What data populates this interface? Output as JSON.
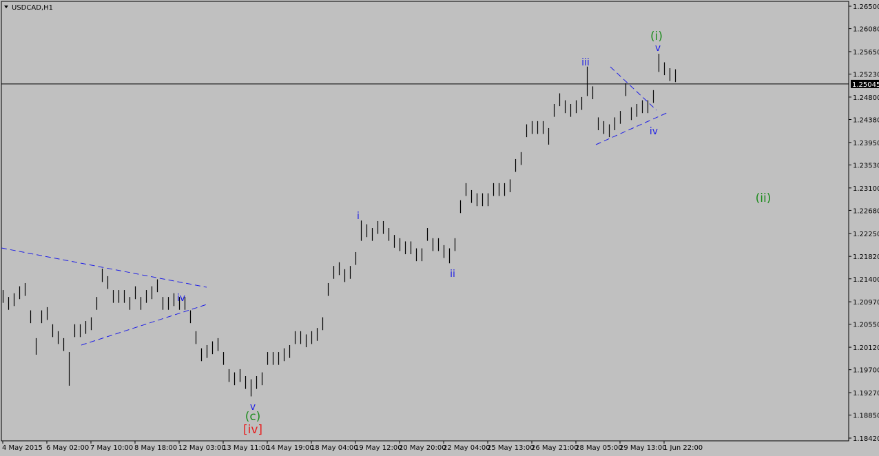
{
  "chart_data": {
    "type": "hlbar",
    "title": "USDCAD,H1",
    "color": "#000000",
    "background": "#c0c0c0",
    "xlim": [
      -0.25,
      153.5
    ],
    "xticks": [
      {
        "value": 0,
        "label": "4 May 2015"
      },
      {
        "value": 8,
        "label": "6 May 02:00"
      },
      {
        "value": 16,
        "label": "7 May 10:00"
      },
      {
        "value": 24,
        "label": "8 May 18:00"
      },
      {
        "value": 32,
        "label": "12 May 03:00"
      },
      {
        "value": 40,
        "label": "13 May 11:00"
      },
      {
        "value": 48,
        "label": "14 May 19:00"
      },
      {
        "value": 56,
        "label": "18 May 04:00"
      },
      {
        "value": 64,
        "label": "19 May 12:00"
      },
      {
        "value": 72,
        "label": "20 May 20:00"
      },
      {
        "value": 80,
        "label": "22 May 04:00"
      },
      {
        "value": 88,
        "label": "25 May 13:00"
      },
      {
        "value": 96,
        "label": "26 May 21:00"
      },
      {
        "value": 104,
        "label": "28 May 05:00"
      },
      {
        "value": 112,
        "label": "29 May 13:00"
      },
      {
        "value": 120,
        "label": "1 Jun 22:00"
      }
    ],
    "ylim": [
      1.1842,
      1.265
    ],
    "yticks": [
      {
        "value": 1.265,
        "label": "1.26500"
      },
      {
        "value": 1.2608,
        "label": "1.26080"
      },
      {
        "value": 1.2565,
        "label": "1.25650"
      },
      {
        "value": 1.2523,
        "label": "1.25230"
      },
      {
        "value": 1.248,
        "label": "1.24800"
      },
      {
        "value": 1.2438,
        "label": "1.24380"
      },
      {
        "value": 1.2395,
        "label": "1.23950"
      },
      {
        "value": 1.2353,
        "label": "1.23530"
      },
      {
        "value": 1.231,
        "label": "1.23100"
      },
      {
        "value": 1.2268,
        "label": "1.22680"
      },
      {
        "value": 1.2225,
        "label": "1.22250"
      },
      {
        "value": 1.2182,
        "label": "1.21820"
      },
      {
        "value": 1.214,
        "label": "1.21400"
      },
      {
        "value": 1.2097,
        "label": "1.20970"
      },
      {
        "value": 1.2055,
        "label": "1.20550"
      },
      {
        "value": 1.2012,
        "label": "1.20120"
      },
      {
        "value": 1.197,
        "label": "1.19700"
      },
      {
        "value": 1.1927,
        "label": "1.19270"
      },
      {
        "value": 1.1885,
        "label": "1.18850"
      },
      {
        "value": 1.1842,
        "label": "1.18420"
      }
    ],
    "last_price": {
      "value": 1.25045,
      "label": "1.25045"
    },
    "high": [
      1.2119,
      1.2106,
      1.2113,
      1.2126,
      1.2132,
      1.2081,
      1.2029,
      1.2081,
      1.2087,
      1.2055,
      1.2042,
      1.2029,
      1.2003,
      1.2055,
      1.2055,
      1.2061,
      1.2068,
      1.2106,
      1.2159,
      1.2145,
      1.2119,
      1.2119,
      1.2119,
      1.2106,
      1.2126,
      1.2106,
      1.2119,
      1.2126,
      1.2139,
      1.2106,
      1.2106,
      1.2113,
      1.2106,
      1.2106,
      1.2081,
      1.2042,
      1.201,
      1.2016,
      1.2023,
      1.2029,
      1.2003,
      1.1971,
      1.1965,
      1.1971,
      1.1958,
      1.1952,
      1.1958,
      1.1965,
      1.2003,
      1.2003,
      1.2003,
      1.201,
      1.2016,
      1.2042,
      1.2042,
      1.2036,
      1.2042,
      1.2048,
      1.2068,
      1.2132,
      1.2164,
      1.2171,
      1.2158,
      1.2164,
      1.219,
      1.2249,
      1.2242,
      1.2235,
      1.2248,
      1.2248,
      1.2235,
      1.2222,
      1.2216,
      1.221,
      1.221,
      1.2197,
      1.2197,
      1.2235,
      1.2216,
      1.2216,
      1.2203,
      1.2197,
      1.2216,
      1.2287,
      1.2319,
      1.2306,
      1.23,
      1.23,
      1.23,
      1.2319,
      1.2319,
      1.2319,
      1.2326,
      1.2364,
      1.2377,
      1.2429,
      1.2435,
      1.2435,
      1.2435,
      1.2422,
      1.2467,
      1.2487,
      1.2474,
      1.2467,
      1.2474,
      1.248,
      1.2537,
      1.25,
      1.2442,
      1.2435,
      1.2429,
      1.2442,
      1.2454,
      1.2506,
      1.2461,
      1.2467,
      1.2474,
      1.2474,
      1.2493,
      1.2561,
      1.2545,
      1.2534,
      1.2532
    ],
    "low": [
      1.2095,
      1.2082,
      1.2089,
      1.2102,
      1.2108,
      1.2057,
      1.1998,
      1.2057,
      1.2063,
      1.2031,
      1.2018,
      1.2005,
      1.194,
      1.2031,
      1.2031,
      1.2037,
      1.2044,
      1.2082,
      1.2134,
      1.2121,
      1.2095,
      1.2095,
      1.2095,
      1.2082,
      1.2102,
      1.2082,
      1.2095,
      1.2102,
      1.2115,
      1.2082,
      1.2082,
      1.2089,
      1.2082,
      1.2082,
      1.2057,
      1.2018,
      1.1986,
      1.1992,
      1.1999,
      1.2005,
      1.1979,
      1.1947,
      1.1941,
      1.1947,
      1.1934,
      1.192,
      1.1934,
      1.1941,
      1.1979,
      1.1979,
      1.1979,
      1.1986,
      1.1992,
      1.2018,
      1.2018,
      1.2012,
      1.2018,
      1.2024,
      1.2044,
      1.2108,
      1.214,
      1.2147,
      1.2134,
      1.214,
      1.2166,
      1.2211,
      1.2218,
      1.2211,
      1.2224,
      1.2224,
      1.2211,
      1.2198,
      1.2192,
      1.2186,
      1.2186,
      1.2173,
      1.2173,
      1.2211,
      1.2192,
      1.2192,
      1.2179,
      1.2169,
      1.2192,
      1.2263,
      1.2295,
      1.2282,
      1.2276,
      1.2276,
      1.2276,
      1.2295,
      1.2295,
      1.2295,
      1.2302,
      1.234,
      1.2353,
      1.2405,
      1.2411,
      1.2411,
      1.2411,
      1.2391,
      1.2443,
      1.2463,
      1.245,
      1.2443,
      1.245,
      1.2456,
      1.2482,
      1.2476,
      1.2418,
      1.2411,
      1.2405,
      1.2418,
      1.243,
      1.2482,
      1.2437,
      1.2443,
      1.245,
      1.245,
      1.2469,
      1.2527,
      1.2521,
      1.251,
      1.2508
    ],
    "annotations": [
      "(i)",
      "v",
      "iii",
      "iv",
      "(ii)",
      "i",
      "ii",
      "iv",
      "v",
      "(c)",
      "[iv]"
    ]
  }
}
